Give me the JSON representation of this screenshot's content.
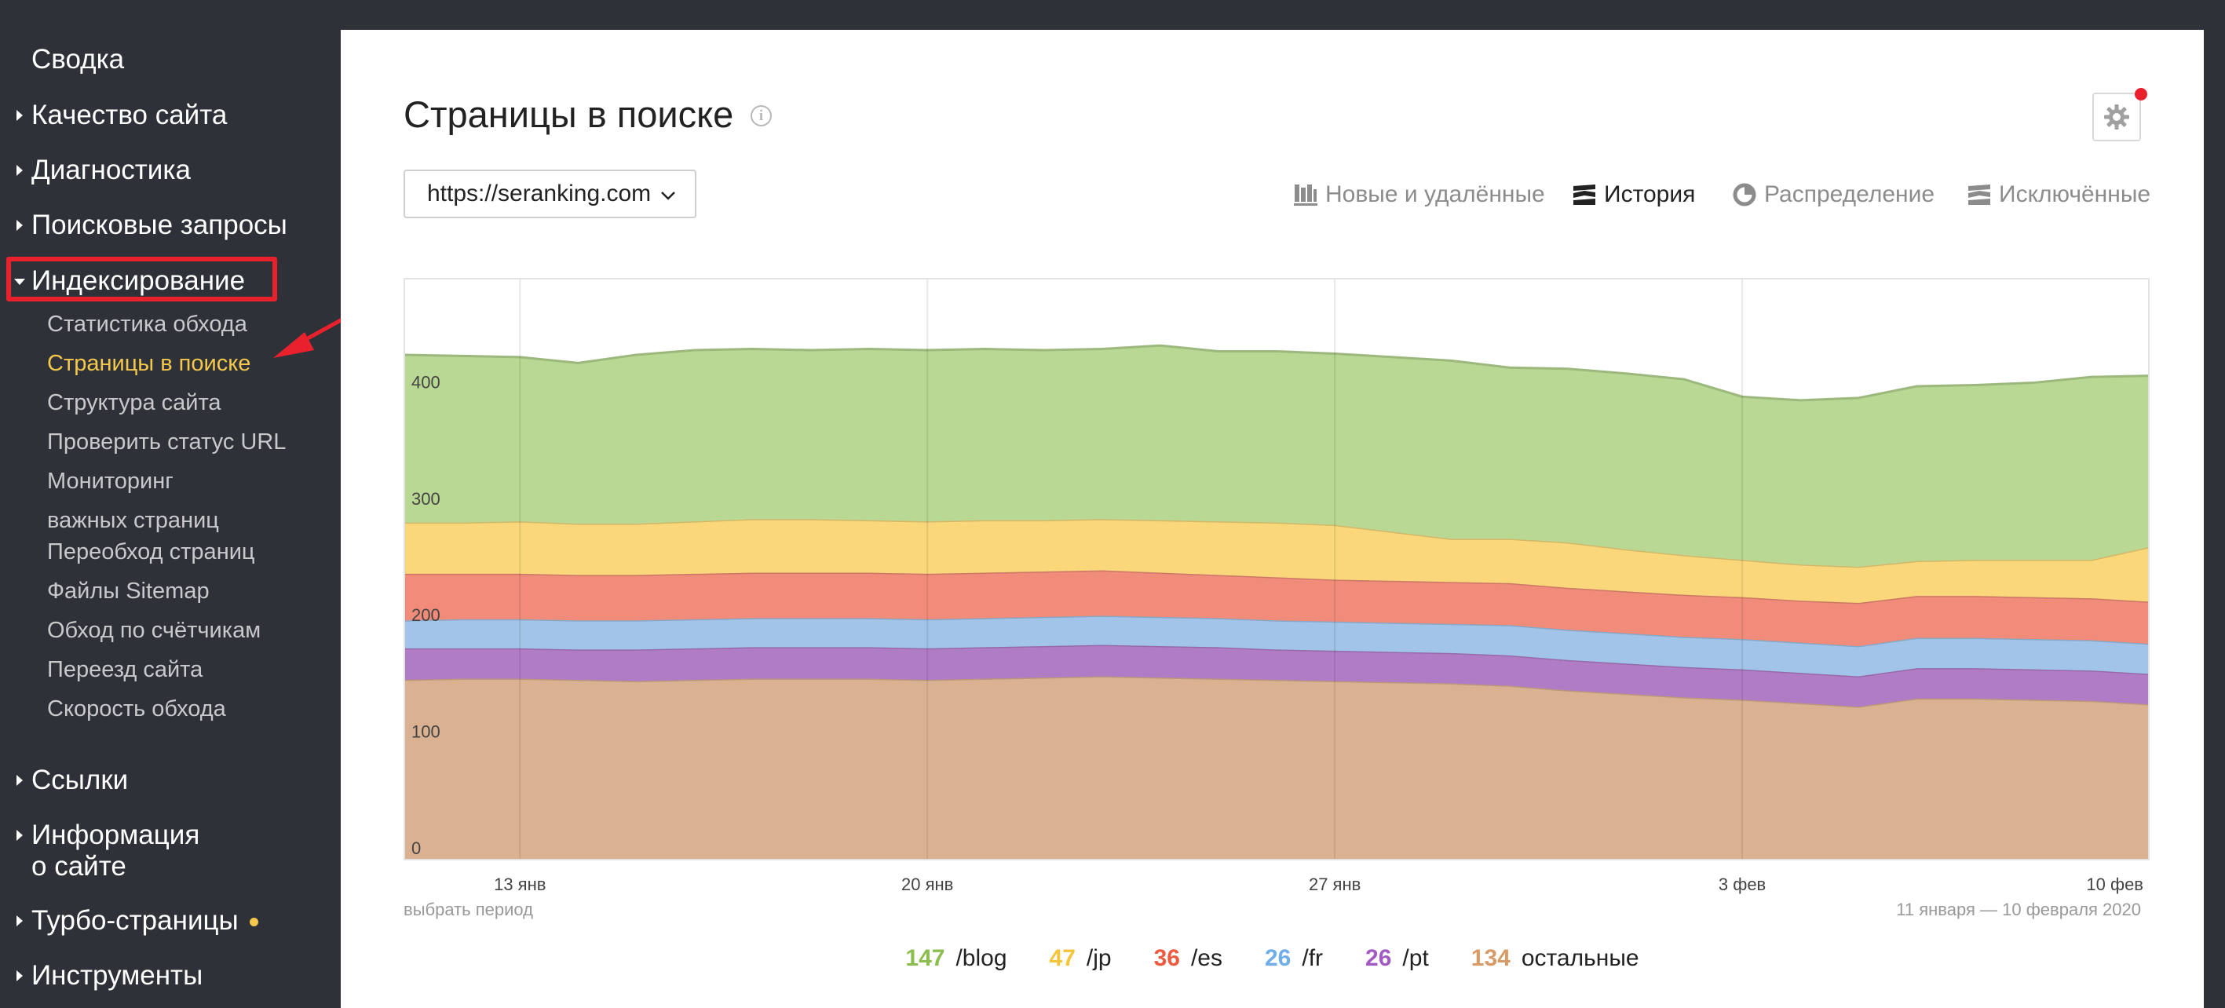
{
  "sidebar": {
    "summary": "Сводка",
    "quality": "Качество сайта",
    "diagnostics": "Диагностика",
    "queries": "Поисковые запросы",
    "indexing": "Индексирование",
    "sub": {
      "crawl_stats": "Статистика обхода",
      "pages_in_search": "Страницы в поиске",
      "structure": "Структура сайта",
      "check_url": "Проверить статус URL",
      "monitoring_1": "Мониторинг",
      "monitoring_2": "важных страниц",
      "recrawl": "Переобход страниц",
      "sitemap": "Файлы Sitemap",
      "counters": "Обход по счётчикам",
      "move": "Переезд сайта",
      "crawl_speed": "Скорость обхода"
    },
    "links": "Ссылки",
    "info_1": "Информация",
    "info_2": "о сайте",
    "turbo": "Турбо-страницы",
    "tools": "Инструменты"
  },
  "header": {
    "title": "Страницы в поиске",
    "info_icon": "i"
  },
  "site_select": {
    "value": "https://seranking.com"
  },
  "tabs": {
    "new_removed": "Новые и удалённые",
    "history": "История",
    "distribution": "Распределение",
    "excluded": "Исключённые"
  },
  "period": {
    "link": "выбрать период",
    "range": "11 января — 10 февраля 2020"
  },
  "chart_data": {
    "type": "area",
    "stacked": true,
    "ylim": [
      0,
      500
    ],
    "yticks": [
      0,
      100,
      200,
      300,
      400
    ],
    "xticks": [
      "13 янв",
      "20 янв",
      "27 янв",
      "3 фев",
      "10 фев"
    ],
    "x": [
      "11 янв",
      "12 янв",
      "13 янв",
      "14 янв",
      "15 янв",
      "16 янв",
      "17 янв",
      "18 янв",
      "19 янв",
      "20 янв",
      "21 янв",
      "22 янв",
      "23 янв",
      "24 янв",
      "25 янв",
      "26 янв",
      "27 янв",
      "28 янв",
      "29 янв",
      "30 янв",
      "31 янв",
      "1 фев",
      "2 фев",
      "3 фев",
      "4 фев",
      "5 фев",
      "6 фев",
      "7 фев",
      "8 фев",
      "9 фев",
      "10 фев"
    ],
    "series": [
      {
        "name": "остальные",
        "color": "#dbb291",
        "values": [
          155,
          156,
          156,
          155,
          154,
          155,
          156,
          156,
          156,
          155,
          156,
          157,
          158,
          157,
          156,
          155,
          154,
          153,
          152,
          150,
          146,
          143,
          140,
          138,
          135,
          132,
          139,
          139,
          138,
          137,
          134
        ]
      },
      {
        "name": "/pt",
        "color": "#b07cc6",
        "values": [
          27,
          26,
          26,
          26,
          27,
          27,
          27,
          27,
          27,
          27,
          27,
          27,
          27,
          27,
          27,
          26,
          26,
          26,
          26,
          26,
          26,
          26,
          26,
          26,
          26,
          26,
          26,
          26,
          26,
          26,
          26
        ]
      },
      {
        "name": "/fr",
        "color": "#a1c4e8",
        "values": [
          24,
          25,
          25,
          25,
          25,
          25,
          25,
          25,
          25,
          25,
          25,
          25,
          25,
          25,
          25,
          25,
          25,
          25,
          25,
          26,
          26,
          26,
          26,
          26,
          26,
          26,
          26,
          26,
          26,
          26,
          26
        ]
      },
      {
        "name": "/es",
        "color": "#f08c79",
        "values": [
          40,
          39,
          39,
          39,
          39,
          39,
          39,
          39,
          39,
          39,
          39,
          39,
          39,
          38,
          37,
          37,
          36,
          36,
          36,
          36,
          36,
          36,
          36,
          36,
          36,
          37,
          36,
          36,
          36,
          36,
          36
        ]
      },
      {
        "name": "/jp",
        "color": "#f9d77a",
        "values": [
          44,
          44,
          45,
          44,
          44,
          45,
          46,
          46,
          45,
          45,
          45,
          44,
          44,
          45,
          46,
          47,
          47,
          42,
          37,
          38,
          39,
          36,
          34,
          32,
          31,
          31,
          30,
          31,
          32,
          33,
          47
        ]
      },
      {
        "name": "/blog",
        "color": "#b8d893",
        "values": [
          144,
          143,
          141,
          138,
          145,
          147,
          146,
          145,
          147,
          147,
          147,
          146,
          146,
          150,
          146,
          147,
          147,
          150,
          153,
          147,
          149,
          151,
          151,
          140,
          141,
          145,
          150,
          150,
          152,
          157,
          147
        ]
      }
    ],
    "legend": [
      {
        "value": "147",
        "label": "/blog",
        "color": "#8cbd4f"
      },
      {
        "value": "47",
        "label": "/jp",
        "color": "#f5c43a"
      },
      {
        "value": "36",
        "label": "/es",
        "color": "#ee5a3f"
      },
      {
        "value": "26",
        "label": "/fr",
        "color": "#6faee8"
      },
      {
        "value": "26",
        "label": "/pt",
        "color": "#a25bc2"
      },
      {
        "value": "134",
        "label": "остальные",
        "color": "#d99b65"
      }
    ],
    "grid": true
  }
}
